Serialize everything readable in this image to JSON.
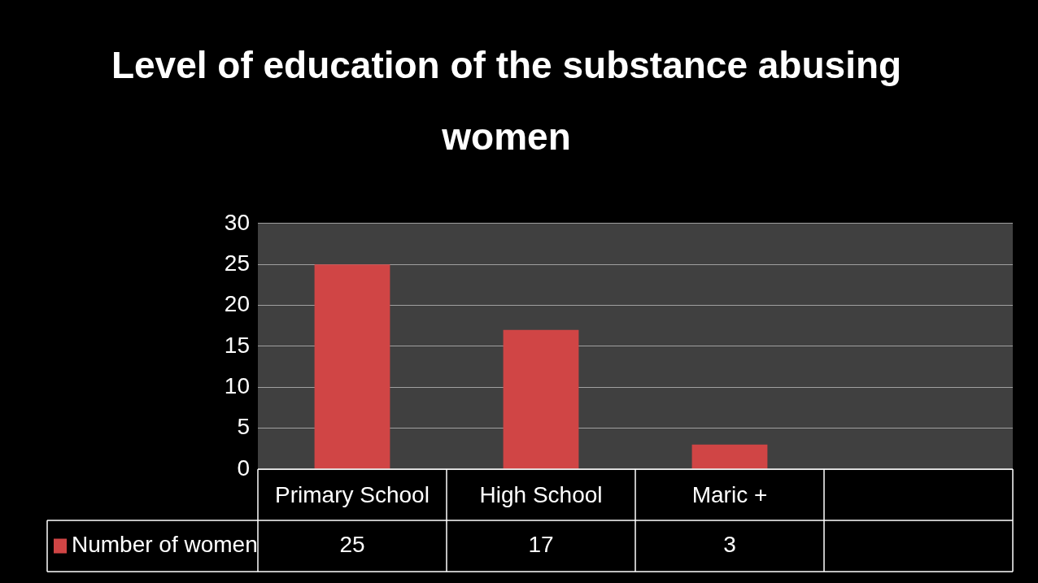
{
  "chart_data": {
    "type": "bar",
    "title": "Level of education of the substance abusing women",
    "categories": [
      "Primary School",
      "High School",
      "Maric +",
      null
    ],
    "series": [
      {
        "name": "Number of women",
        "color": "#d04545",
        "values": [
          25,
          17,
          3,
          null
        ]
      }
    ],
    "ylim": [
      0,
      30
    ],
    "yticks": [
      0,
      5,
      10,
      15,
      20,
      25,
      30
    ],
    "grid": "y",
    "legend": "bottom left",
    "data_labels": true
  }
}
